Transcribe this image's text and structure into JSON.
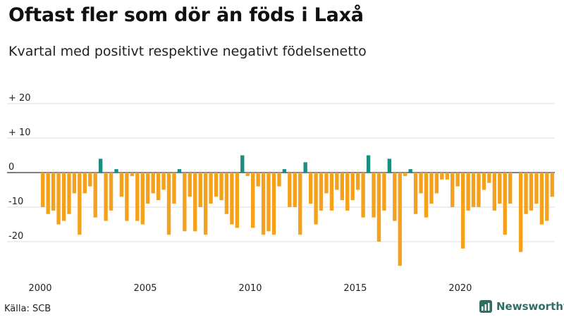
{
  "title": "Oftast fler som dör än föds i Laxå",
  "subtitle": "Kvartal med positivt respektive negativt födelsenetto",
  "source": "Källa: SCB",
  "brand": "Newsworthy",
  "colors": {
    "positive": "#1a8f80",
    "negative": "#f5a11c",
    "grid": "#dddddd",
    "zero": "#333333"
  },
  "chart_data": {
    "type": "bar",
    "title": "Oftast fler som dör än föds i Laxå",
    "subtitle": "Kvartal med positivt respektive negativt födelsenetto",
    "xlabel": "",
    "ylabel": "",
    "ylim": [
      -28,
      22
    ],
    "yticks": [
      20,
      10,
      0,
      -10,
      -20
    ],
    "ytick_labels": [
      "+ 20",
      "+ 10",
      "0",
      "-10",
      "-20"
    ],
    "x_start_year": 2000,
    "x_year_ticks": [
      "2000",
      "2005",
      "2010",
      "2015",
      "2020"
    ],
    "grid": true,
    "frequency": "quarterly",
    "values": [
      -10,
      -12,
      -11,
      -15,
      -14,
      -12,
      -6,
      -18,
      -6,
      -4,
      -13,
      4,
      -14,
      -11,
      1,
      -7,
      -14,
      -1,
      -14,
      -15,
      -9,
      -6,
      -8,
      -5,
      -18,
      -9,
      1,
      -17,
      -7,
      -17,
      -10,
      -18,
      -9,
      -7,
      -8,
      -12,
      -15,
      -16,
      5,
      -1,
      -16,
      -4,
      -18,
      -17,
      -18,
      -4,
      1,
      -10,
      -10,
      -18,
      3,
      -9,
      -15,
      -11,
      -6,
      -11,
      -5,
      -8,
      -11,
      -8,
      -5,
      -13,
      5,
      -13,
      -20,
      -11,
      4,
      -14,
      -27,
      -1,
      1,
      -12,
      -6,
      -13,
      -9,
      -6,
      -2,
      -2,
      -10,
      -4,
      -22,
      -11,
      -10,
      -10,
      -5,
      -3,
      -11,
      -9,
      -18,
      -9,
      0,
      -23,
      -12,
      -11,
      -9,
      -15,
      -14,
      -7
    ]
  }
}
